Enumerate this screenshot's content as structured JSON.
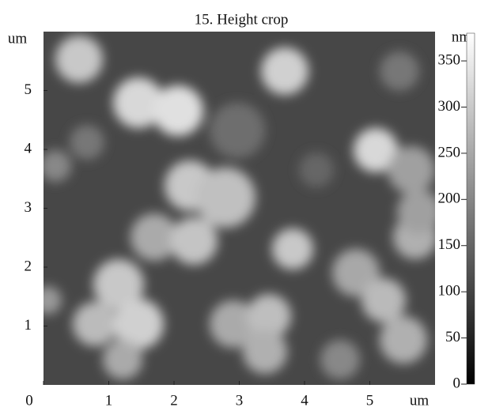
{
  "chart_data": {
    "type": "heatmap",
    "title": "15. Height crop",
    "x_label": "um",
    "y_label": "um",
    "colorbar_label": "nm",
    "xlim": [
      0,
      6
    ],
    "ylim": [
      0,
      6
    ],
    "xticks": [
      0,
      1,
      2,
      3,
      4,
      5
    ],
    "yticks": [
      1,
      2,
      3,
      4,
      5
    ],
    "colorbar_lim": [
      0,
      380
    ],
    "colorbar_ticks": [
      0,
      50,
      100,
      150,
      200,
      250,
      300,
      350
    ]
  }
}
